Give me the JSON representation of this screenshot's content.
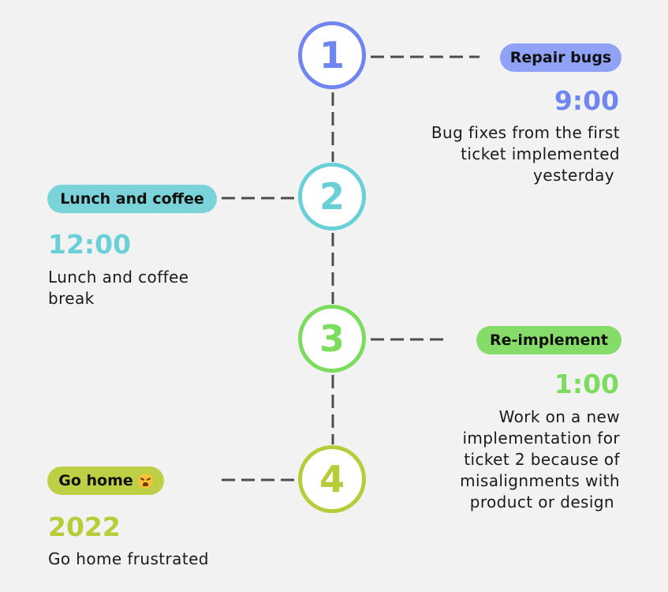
{
  "colors": {
    "step1": "#6f86f0",
    "step2": "#6ad0d8",
    "step3": "#7bdc5e",
    "step4": "#b8cc3a",
    "pill1": "#8fa2f6",
    "pill2": "#79d3d9",
    "pill3": "#86dc68",
    "pill4": "#bccf45",
    "connector": "#4d4d4d"
  },
  "steps": [
    {
      "number": "1",
      "tag": "Repair bugs",
      "time": "9:00",
      "description_lines": [
        "Bug fixes from the first",
        "ticket implemented",
        "yesterday"
      ]
    },
    {
      "number": "2",
      "tag": "Lunch and coffee",
      "time": "12:00",
      "description_lines": [
        "Lunch and coffee",
        "break"
      ]
    },
    {
      "number": "3",
      "tag": "Re-implement",
      "time": "1:00",
      "description_lines": [
        "Work on a new",
        "implementation for",
        "ticket 2 because of",
        "misalignments with",
        "product or design"
      ]
    },
    {
      "number": "4",
      "tag": "Go home",
      "tag_icon": "weary-face-emoji-icon",
      "time": "2022",
      "description_lines": [
        "Go home frustrated"
      ]
    }
  ]
}
